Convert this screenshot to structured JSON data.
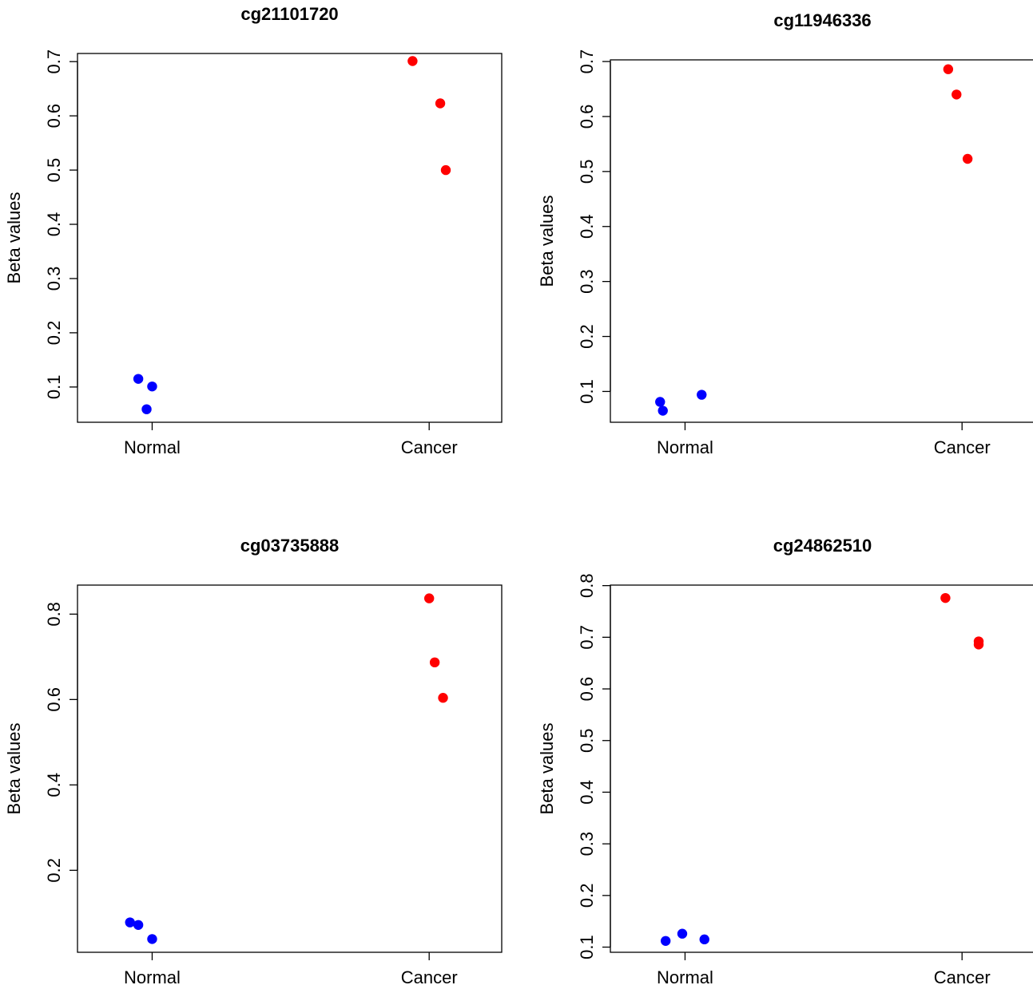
{
  "chart_data": [
    {
      "type": "scatter",
      "title": "cg21101720",
      "xlabel": "",
      "ylabel": "Beta values",
      "categories": [
        "Normal",
        "Cancer"
      ],
      "yticks": [
        0.1,
        0.2,
        0.3,
        0.4,
        0.5,
        0.6,
        0.7
      ],
      "ylim": [
        0.035,
        0.715
      ],
      "series": [
        {
          "category": "Normal",
          "color": "#0000ff",
          "x": [
            0.95,
            1.0,
            0.98
          ],
          "y": [
            0.115,
            0.101,
            0.059
          ]
        },
        {
          "category": "Cancer",
          "color": "#ff0000",
          "x": [
            1.94,
            2.04,
            2.06
          ],
          "y": [
            0.701,
            0.623,
            0.5
          ]
        }
      ]
    },
    {
      "type": "scatter",
      "title": "cg11946336",
      "xlabel": "",
      "ylabel": "Beta values",
      "categories": [
        "Normal",
        "Cancer"
      ],
      "yticks": [
        0.1,
        0.2,
        0.3,
        0.4,
        0.5,
        0.6,
        0.7
      ],
      "ylim": [
        0.044,
        0.703
      ],
      "series": [
        {
          "category": "Normal",
          "color": "#0000ff",
          "x": [
            0.91,
            0.92,
            1.06
          ],
          "y": [
            0.081,
            0.065,
            0.094
          ]
        },
        {
          "category": "Cancer",
          "color": "#ff0000",
          "x": [
            1.95,
            1.98,
            2.02
          ],
          "y": [
            0.686,
            0.64,
            0.523
          ]
        }
      ]
    },
    {
      "type": "scatter",
      "title": "cg03735888",
      "xlabel": "",
      "ylabel": "Beta values",
      "categories": [
        "Normal",
        "Cancer"
      ],
      "yticks": [
        0.2,
        0.4,
        0.6,
        0.8
      ],
      "ylim": [
        0.008,
        0.868
      ],
      "series": [
        {
          "category": "Normal",
          "color": "#0000ff",
          "x": [
            0.92,
            0.95,
            1.0
          ],
          "y": [
            0.078,
            0.072,
            0.039
          ]
        },
        {
          "category": "Cancer",
          "color": "#ff0000",
          "x": [
            2.0,
            2.02,
            2.05
          ],
          "y": [
            0.837,
            0.687,
            0.604
          ]
        }
      ]
    },
    {
      "type": "scatter",
      "title": "cg24862510",
      "xlabel": "",
      "ylabel": "Beta values",
      "categories": [
        "Normal",
        "Cancer"
      ],
      "yticks": [
        0.1,
        0.2,
        0.3,
        0.4,
        0.5,
        0.6,
        0.7,
        0.8
      ],
      "ylim": [
        0.09,
        0.801
      ],
      "series": [
        {
          "category": "Normal",
          "color": "#0000ff",
          "x": [
            0.93,
            0.99,
            1.07
          ],
          "y": [
            0.112,
            0.126,
            0.115
          ]
        },
        {
          "category": "Cancer",
          "color": "#ff0000",
          "x": [
            1.94,
            2.06,
            2.06
          ],
          "y": [
            0.776,
            0.692,
            0.686
          ]
        }
      ]
    }
  ]
}
